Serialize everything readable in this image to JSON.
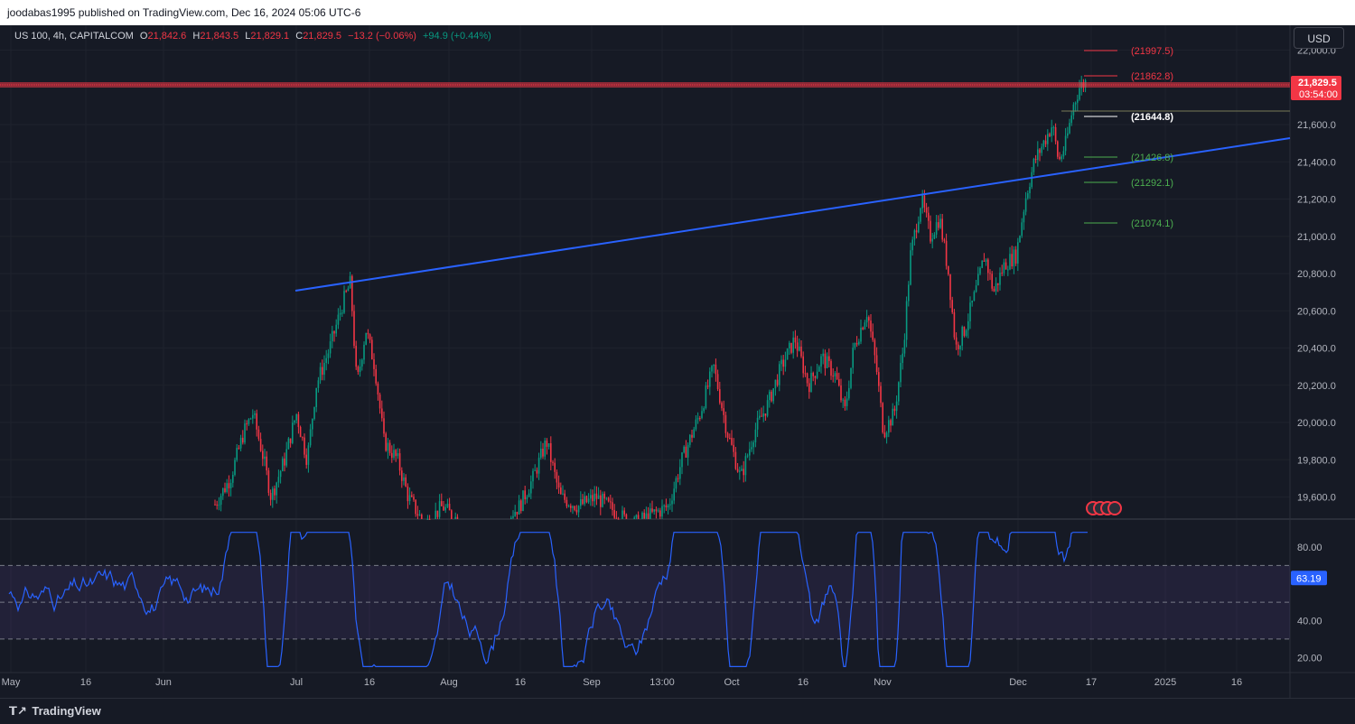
{
  "publish": {
    "text": "joodabas1995 published on TradingView.com, Dec 16, 2024 05:06 UTC-6"
  },
  "legend": {
    "symbol": "US 100, 4h, CAPITALCOM",
    "o_label": "O",
    "o_value": "21,842.6",
    "h_label": "H",
    "h_value": "21,843.5",
    "l_label": "L",
    "l_value": "21,829.1",
    "c_label": "C",
    "c_value": "21,829.5",
    "change": "−13.2 (−0.06%)",
    "change2": "+94.9 (+0.44%)"
  },
  "currency_button": "USD",
  "price_axis": {
    "labels": [
      "22,000.0",
      "21,600.0",
      "21,400.0",
      "21,200.0",
      "21,000.0",
      "20,800.0",
      "20,600.0",
      "20,400.0",
      "20,200.0",
      "20,000.0",
      "19,800.0",
      "19,600.0"
    ],
    "current_price": "21,829.5",
    "countdown": "03:54:00"
  },
  "levels": [
    {
      "label": "(21997.5)",
      "color": "#f23645"
    },
    {
      "label": "(21862.8)",
      "color": "#f23645"
    },
    {
      "label": "(21644.8)",
      "color": "#ffffff"
    },
    {
      "label": "(21426.8)",
      "color": "#4caf50"
    },
    {
      "label": "(21292.1)",
      "color": "#4caf50"
    },
    {
      "label": "(21074.1)",
      "color": "#4caf50"
    }
  ],
  "rsi": {
    "axis_labels": [
      "80.00",
      "40.00",
      "20.00"
    ],
    "current": "63.19"
  },
  "time_axis": {
    "labels": [
      "May",
      "16",
      "Jun",
      "Jul",
      "16",
      "Aug",
      "16",
      "Sep",
      "13:00",
      "Oct",
      "16",
      "Nov",
      "Dec",
      "17",
      "2025",
      "16"
    ]
  },
  "footer": {
    "brand": "TradingView",
    "logo_icon": "tradingview-logo-icon"
  },
  "colors": {
    "up": "#089981",
    "down": "#f23645",
    "trendline": "#2962ff",
    "rsi_line": "#2962ff"
  }
}
